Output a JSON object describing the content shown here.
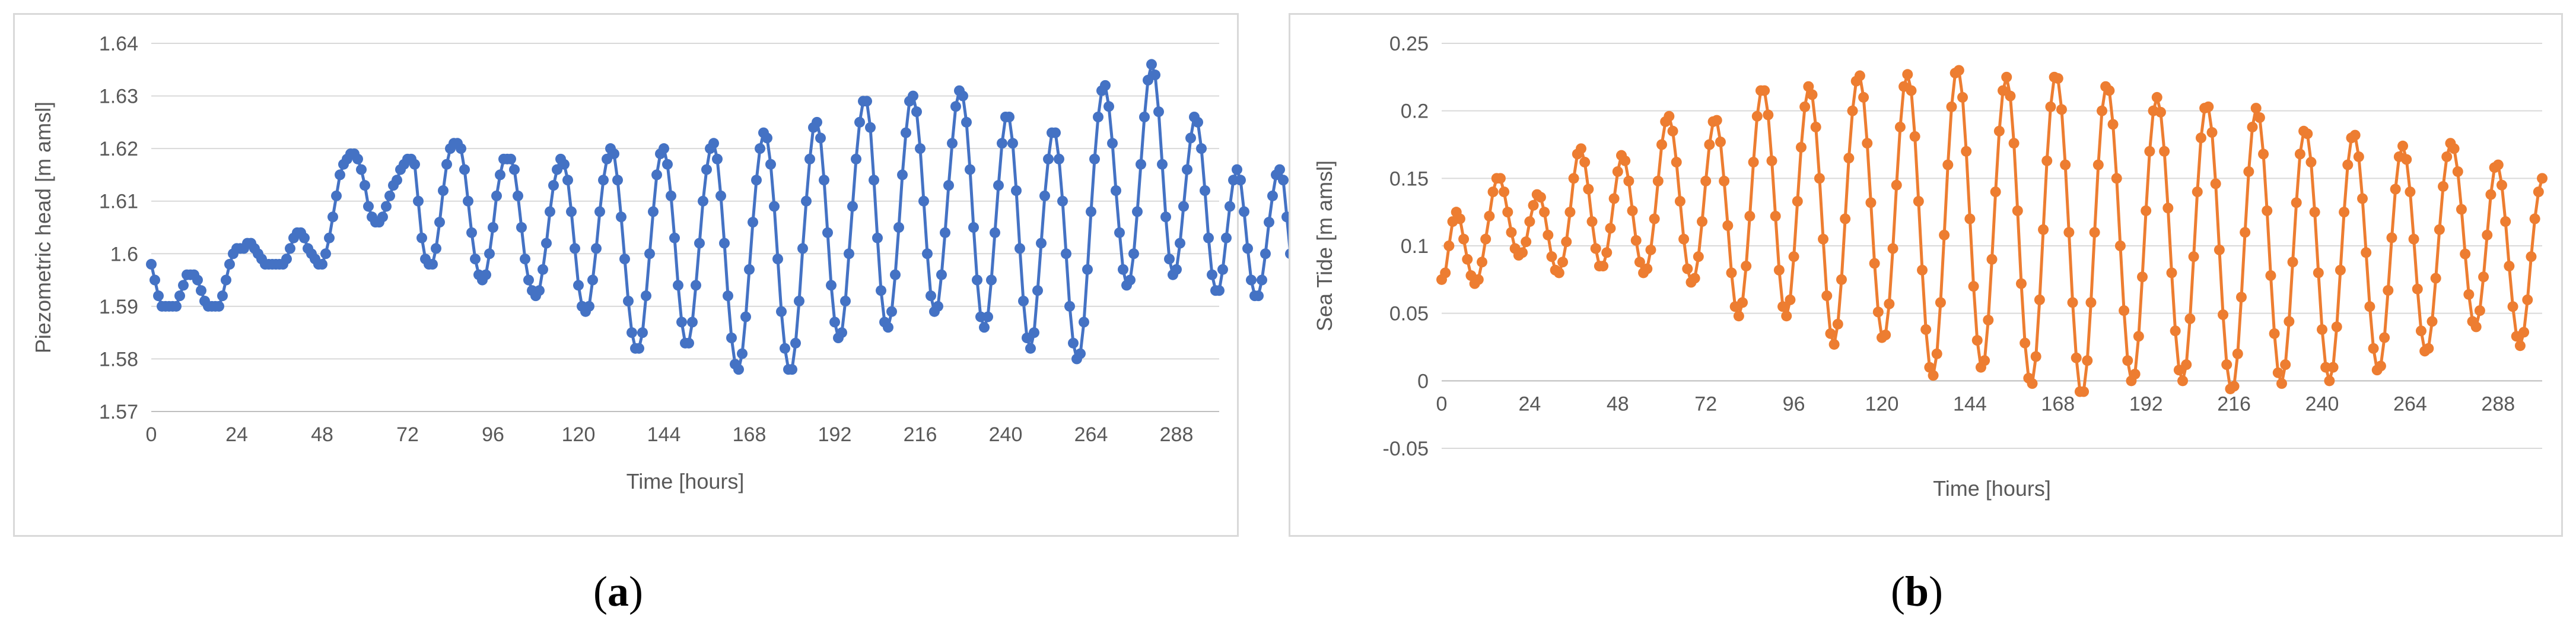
{
  "chart_data": [
    {
      "id": "a",
      "type": "line",
      "panel_label": "a",
      "title": "",
      "xlabel": "Time [hours]",
      "ylabel": "Piezometric head [m amsl]",
      "xlim": [
        0,
        300
      ],
      "ylim": [
        1.57,
        1.64
      ],
      "xticks": [
        0,
        24,
        48,
        72,
        96,
        120,
        144,
        168,
        192,
        216,
        240,
        264,
        288
      ],
      "yticks": [
        1.57,
        1.58,
        1.59,
        1.6,
        1.61,
        1.62,
        1.63,
        1.64
      ],
      "ytick_labels": [
        "1.57",
        "1.58",
        "1.59",
        "1.6",
        "1.61",
        "1.62",
        "1.63",
        "1.64"
      ],
      "grid": true,
      "legend": false,
      "color": "#4472C4",
      "series": [
        {
          "sampling_hours": 1,
          "values": [
            1.598,
            1.595,
            1.592,
            1.59,
            1.59,
            1.59,
            1.59,
            1.59,
            1.592,
            1.594,
            1.596,
            1.596,
            1.596,
            1.595,
            1.593,
            1.591,
            1.59,
            1.59,
            1.59,
            1.59,
            1.592,
            1.595,
            1.598,
            1.6,
            1.601,
            1.601,
            1.601,
            1.602,
            1.602,
            1.601,
            1.6,
            1.599,
            1.598,
            1.598,
            1.598,
            1.598,
            1.598,
            1.598,
            1.599,
            1.601,
            1.603,
            1.604,
            1.604,
            1.603,
            1.601,
            1.6,
            1.599,
            1.598,
            1.598,
            1.6,
            1.603,
            1.607,
            1.611,
            1.615,
            1.617,
            1.618,
            1.619,
            1.619,
            1.618,
            1.616,
            1.613,
            1.609,
            1.607,
            1.606,
            1.606,
            1.607,
            1.609,
            1.611,
            1.613,
            1.614,
            1.616,
            1.617,
            1.618,
            1.618,
            1.617,
            1.61,
            1.603,
            1.599,
            1.598,
            1.598,
            1.601,
            1.606,
            1.612,
            1.617,
            1.62,
            1.621,
            1.621,
            1.62,
            1.616,
            1.61,
            1.604,
            1.599,
            1.596,
            1.595,
            1.596,
            1.6,
            1.605,
            1.611,
            1.615,
            1.618,
            1.618,
            1.618,
            1.616,
            1.611,
            1.605,
            1.599,
            1.595,
            1.593,
            1.592,
            1.593,
            1.597,
            1.602,
            1.608,
            1.613,
            1.616,
            1.618,
            1.617,
            1.614,
            1.608,
            1.601,
            1.594,
            1.59,
            1.589,
            1.59,
            1.595,
            1.601,
            1.608,
            1.614,
            1.618,
            1.62,
            1.619,
            1.614,
            1.607,
            1.599,
            1.591,
            1.585,
            1.582,
            1.582,
            1.585,
            1.592,
            1.6,
            1.608,
            1.615,
            1.619,
            1.62,
            1.617,
            1.611,
            1.603,
            1.594,
            1.587,
            1.583,
            1.583,
            1.587,
            1.594,
            1.602,
            1.61,
            1.616,
            1.62,
            1.621,
            1.618,
            1.611,
            1.602,
            1.592,
            1.584,
            1.579,
            1.578,
            1.581,
            1.588,
            1.597,
            1.606,
            1.614,
            1.62,
            1.623,
            1.622,
            1.617,
            1.609,
            1.599,
            1.589,
            1.582,
            1.578,
            1.578,
            1.583,
            1.591,
            1.601,
            1.61,
            1.618,
            1.624,
            1.625,
            1.622,
            1.614,
            1.604,
            1.594,
            1.587,
            1.584,
            1.585,
            1.591,
            1.6,
            1.609,
            1.618,
            1.625,
            1.629,
            1.629,
            1.624,
            1.614,
            1.603,
            1.593,
            1.587,
            1.586,
            1.589,
            1.596,
            1.605,
            1.615,
            1.623,
            1.629,
            1.63,
            1.627,
            1.62,
            1.61,
            1.6,
            1.592,
            1.589,
            1.59,
            1.596,
            1.604,
            1.613,
            1.621,
            1.628,
            1.631,
            1.63,
            1.625,
            1.616,
            1.605,
            1.595,
            1.588,
            1.586,
            1.588,
            1.595,
            1.604,
            1.613,
            1.621,
            1.626,
            1.626,
            1.621,
            1.612,
            1.601,
            1.591,
            1.584,
            1.582,
            1.585,
            1.593,
            1.602,
            1.611,
            1.618,
            1.623,
            1.623,
            1.618,
            1.61,
            1.6,
            1.59,
            1.583,
            1.58,
            1.581,
            1.587,
            1.597,
            1.608,
            1.618,
            1.626,
            1.631,
            1.632,
            1.628,
            1.621,
            1.612,
            1.604,
            1.597,
            1.594,
            1.595,
            1.6,
            1.608,
            1.617,
            1.626,
            1.633,
            1.636,
            1.634,
            1.627,
            1.617,
            1.607,
            1.599,
            1.596,
            1.597,
            1.602,
            1.609,
            1.616,
            1.622,
            1.626,
            1.625,
            1.62,
            1.612,
            1.603,
            1.596,
            1.593,
            1.593,
            1.597,
            1.603,
            1.609,
            1.614,
            1.616,
            1.614,
            1.608,
            1.601,
            1.595,
            1.592,
            1.592,
            1.595,
            1.6,
            1.606,
            1.611,
            1.615,
            1.616,
            1.614,
            1.607,
            1.6,
            1.595
          ]
        }
      ]
    },
    {
      "id": "b",
      "type": "line",
      "panel_label": "b",
      "title": "",
      "xlabel": "Time [hours]",
      "ylabel": "Sea Tide [m amsl]",
      "xlim": [
        0,
        300
      ],
      "ylim": [
        -0.05,
        0.25
      ],
      "xticks": [
        0,
        24,
        48,
        72,
        96,
        120,
        144,
        168,
        192,
        216,
        240,
        264,
        288
      ],
      "yticks": [
        -0.05,
        0,
        0.05,
        0.1,
        0.15,
        0.2,
        0.25
      ],
      "ytick_labels": [
        "-0.05",
        "0",
        "0.05",
        "0.1",
        "0.15",
        "0.2",
        "0.25"
      ],
      "grid": true,
      "legend": false,
      "color": "#ED7D31",
      "series": [
        {
          "sampling_hours": 1,
          "values": [
            0.075,
            0.08,
            0.1,
            0.118,
            0.125,
            0.12,
            0.105,
            0.09,
            0.078,
            0.072,
            0.075,
            0.088,
            0.105,
            0.122,
            0.14,
            0.15,
            0.15,
            0.14,
            0.125,
            0.11,
            0.098,
            0.093,
            0.095,
            0.103,
            0.118,
            0.13,
            0.138,
            0.136,
            0.125,
            0.108,
            0.092,
            0.082,
            0.08,
            0.088,
            0.103,
            0.125,
            0.15,
            0.168,
            0.172,
            0.162,
            0.142,
            0.118,
            0.098,
            0.085,
            0.085,
            0.095,
            0.113,
            0.135,
            0.155,
            0.167,
            0.163,
            0.148,
            0.126,
            0.104,
            0.088,
            0.08,
            0.083,
            0.097,
            0.12,
            0.148,
            0.175,
            0.192,
            0.196,
            0.185,
            0.162,
            0.133,
            0.105,
            0.083,
            0.073,
            0.076,
            0.092,
            0.118,
            0.148,
            0.175,
            0.192,
            0.193,
            0.177,
            0.148,
            0.115,
            0.08,
            0.055,
            0.048,
            0.058,
            0.085,
            0.122,
            0.162,
            0.196,
            0.215,
            0.215,
            0.197,
            0.163,
            0.122,
            0.082,
            0.055,
            0.048,
            0.06,
            0.092,
            0.133,
            0.173,
            0.203,
            0.218,
            0.212,
            0.188,
            0.15,
            0.105,
            0.063,
            0.035,
            0.027,
            0.042,
            0.075,
            0.12,
            0.165,
            0.2,
            0.222,
            0.226,
            0.21,
            0.176,
            0.132,
            0.087,
            0.051,
            0.032,
            0.034,
            0.057,
            0.098,
            0.145,
            0.188,
            0.218,
            0.227,
            0.215,
            0.181,
            0.133,
            0.082,
            0.038,
            0.01,
            0.004,
            0.02,
            0.058,
            0.108,
            0.16,
            0.203,
            0.228,
            0.23,
            0.21,
            0.17,
            0.12,
            0.07,
            0.03,
            0.01,
            0.015,
            0.045,
            0.09,
            0.14,
            0.185,
            0.215,
            0.225,
            0.211,
            0.176,
            0.126,
            0.072,
            0.028,
            0.002,
            -0.002,
            0.018,
            0.06,
            0.112,
            0.163,
            0.203,
            0.225,
            0.224,
            0.201,
            0.16,
            0.11,
            0.058,
            0.017,
            -0.008,
            -0.008,
            0.015,
            0.058,
            0.11,
            0.16,
            0.2,
            0.218,
            0.215,
            0.19,
            0.15,
            0.1,
            0.052,
            0.015,
            0.0,
            0.005,
            0.033,
            0.077,
            0.126,
            0.17,
            0.2,
            0.21,
            0.199,
            0.17,
            0.128,
            0.08,
            0.037,
            0.008,
            0.0,
            0.012,
            0.046,
            0.092,
            0.14,
            0.18,
            0.202,
            0.203,
            0.184,
            0.146,
            0.097,
            0.049,
            0.012,
            -0.006,
            -0.004,
            0.02,
            0.062,
            0.11,
            0.155,
            0.188,
            0.202,
            0.195,
            0.168,
            0.126,
            0.078,
            0.035,
            0.006,
            -0.002,
            0.012,
            0.044,
            0.088,
            0.132,
            0.168,
            0.185,
            0.183,
            0.162,
            0.125,
            0.08,
            0.038,
            0.01,
            0.0,
            0.01,
            0.04,
            0.082,
            0.125,
            0.16,
            0.18,
            0.182,
            0.166,
            0.135,
            0.095,
            0.055,
            0.024,
            0.008,
            0.011,
            0.032,
            0.067,
            0.106,
            0.142,
            0.166,
            0.174,
            0.164,
            0.14,
            0.105,
            0.068,
            0.037,
            0.022,
            0.024,
            0.044,
            0.076,
            0.112,
            0.144,
            0.166,
            0.176,
            0.172,
            0.155,
            0.127,
            0.094,
            0.064,
            0.044,
            0.04,
            0.052,
            0.077,
            0.108,
            0.138,
            0.158,
            0.16,
            0.145,
            0.118,
            0.085,
            0.055,
            0.033,
            0.026,
            0.036,
            0.06,
            0.092,
            0.12,
            0.14,
            0.15
          ]
        }
      ]
    }
  ]
}
